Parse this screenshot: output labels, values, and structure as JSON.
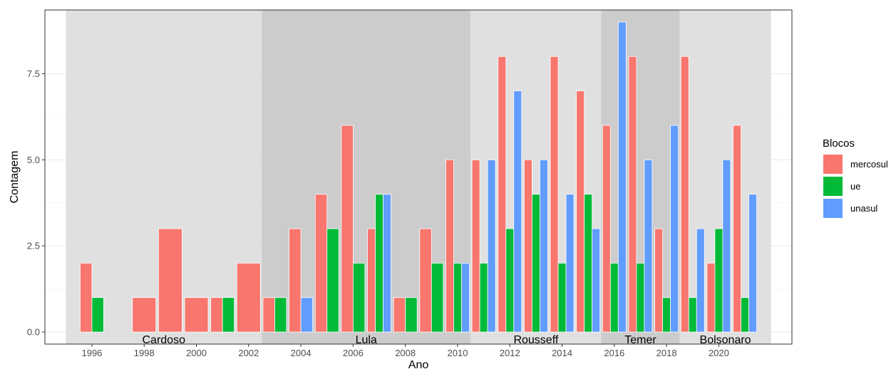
{
  "chart_data": {
    "type": "bar",
    "title": "",
    "xlabel": "Ano",
    "ylabel": "Contagem",
    "xlim": [
      1994.2,
      2022.8
    ],
    "ylim": [
      -0.35,
      9.35
    ],
    "x_ticks": [
      1996,
      1998,
      2000,
      2002,
      2004,
      2006,
      2008,
      2010,
      2012,
      2014,
      2016,
      2018,
      2020
    ],
    "x_tick_labels": [
      "1996",
      "1998",
      "2000",
      "2002",
      "2004",
      "2006",
      "2008",
      "2010",
      "2012",
      "2014",
      "2016",
      "2018",
      "2020"
    ],
    "y_ticks": [
      0,
      2.5,
      5,
      7.5
    ],
    "y_tick_labels": [
      "0.0",
      "2.5",
      "5.0",
      "7.5"
    ],
    "grid": true,
    "legend": {
      "title": "Blocos",
      "position": "right",
      "entries": [
        "mercosul",
        "ue",
        "unasul"
      ]
    },
    "periods": [
      {
        "label": "Cardoso",
        "start": 1995,
        "end": 2002.5,
        "color": "#e0e0e0"
      },
      {
        "label": "Lula",
        "start": 2002.5,
        "end": 2010.5,
        "color": "#cccccc"
      },
      {
        "label": "Rousseff",
        "start": 2010.5,
        "end": 2015.5,
        "color": "#e0e0e0"
      },
      {
        "label": "Temer",
        "start": 2015.5,
        "end": 2018.5,
        "color": "#cccccc"
      },
      {
        "label": "Bolsonaro",
        "start": 2018.5,
        "end": 2022,
        "color": "#e0e0e0"
      }
    ],
    "series": [
      {
        "name": "mercosul",
        "color": "#f8766d",
        "points": [
          [
            1996,
            2
          ],
          [
            1998,
            1
          ],
          [
            1999,
            3
          ],
          [
            2000,
            1
          ],
          [
            2001,
            1
          ],
          [
            2002,
            2
          ],
          [
            2003,
            1
          ],
          [
            2004,
            3
          ],
          [
            2005,
            4
          ],
          [
            2006,
            6
          ],
          [
            2007,
            3
          ],
          [
            2008,
            1
          ],
          [
            2009,
            3
          ],
          [
            2010,
            5
          ],
          [
            2011,
            5
          ],
          [
            2012,
            8
          ],
          [
            2013,
            5
          ],
          [
            2014,
            8
          ],
          [
            2015,
            7
          ],
          [
            2016,
            6
          ],
          [
            2017,
            8
          ],
          [
            2018,
            3
          ],
          [
            2019,
            8
          ],
          [
            2020,
            2
          ],
          [
            2021,
            6
          ]
        ]
      },
      {
        "name": "ue",
        "color": "#00ba38",
        "points": [
          [
            1996,
            1
          ],
          [
            2001,
            1
          ],
          [
            2003,
            1
          ],
          [
            2005,
            3
          ],
          [
            2006,
            2
          ],
          [
            2007,
            4
          ],
          [
            2008,
            1
          ],
          [
            2009,
            2
          ],
          [
            2010,
            2
          ],
          [
            2011,
            2
          ],
          [
            2012,
            3
          ],
          [
            2013,
            4
          ],
          [
            2014,
            2
          ],
          [
            2015,
            4
          ],
          [
            2016,
            2
          ],
          [
            2017,
            2
          ],
          [
            2018,
            1
          ],
          [
            2019,
            1
          ],
          [
            2020,
            3
          ],
          [
            2021,
            1
          ]
        ]
      },
      {
        "name": "unasul",
        "color": "#619cff",
        "points": [
          [
            2004,
            1
          ],
          [
            2007,
            4
          ],
          [
            2010,
            2
          ],
          [
            2011,
            5
          ],
          [
            2012,
            7
          ],
          [
            2013,
            5
          ],
          [
            2014,
            4
          ],
          [
            2015,
            3
          ],
          [
            2016,
            9
          ],
          [
            2017,
            5
          ],
          [
            2018,
            6
          ],
          [
            2019,
            3
          ],
          [
            2020,
            5
          ],
          [
            2021,
            4
          ]
        ]
      }
    ]
  }
}
